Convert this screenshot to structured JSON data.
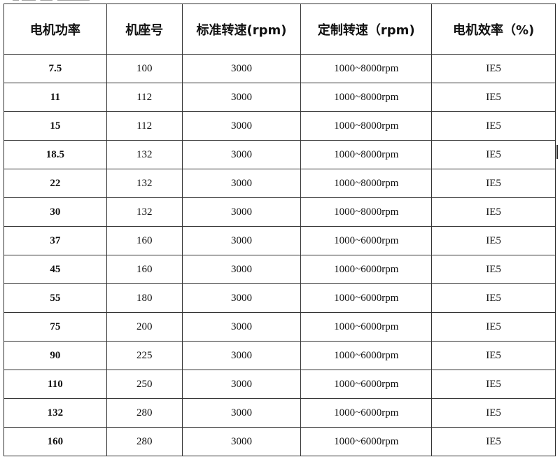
{
  "table": {
    "headers": [
      "电机功率",
      "机座号",
      "标准转速(rpm)",
      "定制转速（rpm)",
      "电机效率（%)"
    ],
    "rows": [
      [
        "7.5",
        "100",
        "3000",
        "1000~8000rpm",
        "IE5"
      ],
      [
        "11",
        "112",
        "3000",
        "1000~8000rpm",
        "IE5"
      ],
      [
        "15",
        "112",
        "3000",
        "1000~8000rpm",
        "IE5"
      ],
      [
        "18.5",
        "132",
        "3000",
        "1000~8000rpm",
        "IE5"
      ],
      [
        "22",
        "132",
        "3000",
        "1000~8000rpm",
        "IE5"
      ],
      [
        "30",
        "132",
        "3000",
        "1000~8000rpm",
        "IE5"
      ],
      [
        "37",
        "160",
        "3000",
        "1000~6000rpm",
        "IE5"
      ],
      [
        "45",
        "160",
        "3000",
        "1000~6000rpm",
        "IE5"
      ],
      [
        "55",
        "180",
        "3000",
        "1000~6000rpm",
        "IE5"
      ],
      [
        "75",
        "200",
        "3000",
        "1000~6000rpm",
        "IE5"
      ],
      [
        "90",
        "225",
        "3000",
        "1000~6000rpm",
        "IE5"
      ],
      [
        "110",
        "250",
        "3000",
        "1000~6000rpm",
        "IE5"
      ],
      [
        "132",
        "280",
        "3000",
        "1000~6000rpm",
        "IE5"
      ],
      [
        "160",
        "280",
        "3000",
        "1000~6000rpm",
        "IE5"
      ]
    ]
  }
}
